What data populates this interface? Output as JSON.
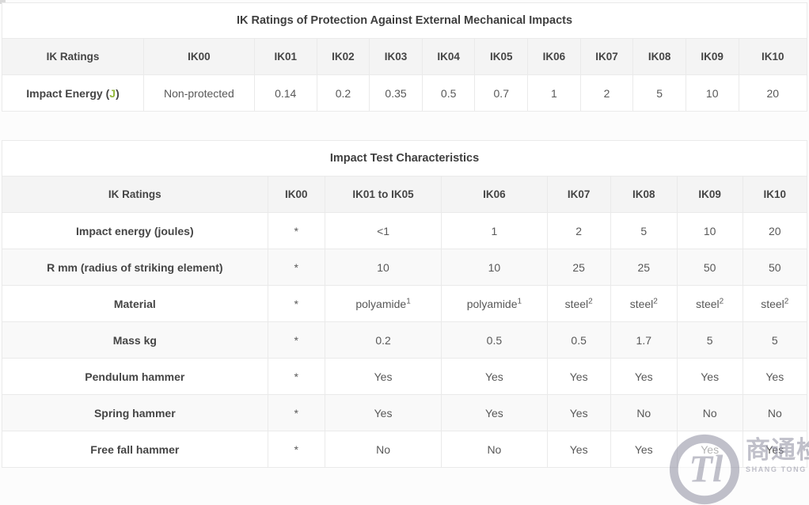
{
  "colors": {
    "green": "#93b83d",
    "header_bg": "#f4f4f4",
    "stripe_bg": "#f9f9f9",
    "border": "#eaeaea",
    "text_dark": "#454545",
    "text_body": "#585858",
    "watermark_gray": "#8e8ea0"
  },
  "table1": {
    "title": "IK Ratings of Protection Against External Mechanical Impacts",
    "col_widths_pct": [
      17.6,
      13.75,
      7.75,
      6.55,
      6.55,
      6.55,
      6.55,
      6.55,
      6.55,
      6.55,
      6.55,
      8.5
    ],
    "header": [
      "IK Ratings",
      "IK00",
      "IK01",
      "IK02",
      "IK03",
      "IK04",
      "IK05",
      "IK06",
      "IK07",
      "IK08",
      "IK09",
      "IK10"
    ],
    "rows": [
      {
        "label": {
          "parts": [
            {
              "text": "Impact Energy ("
            },
            {
              "text": "J",
              "color": "green"
            },
            {
              "text": ")"
            }
          ]
        },
        "cells": [
          "Non-protected",
          "0.14",
          "0.2",
          "0.35",
          "0.5",
          "0.7",
          "1",
          "2",
          "5",
          "10",
          "20"
        ]
      }
    ]
  },
  "table2": {
    "title": "Impact Test Characteristics",
    "col_widths_pct": [
      33.0,
      7.1,
      14.5,
      13.1,
      7.9,
      8.25,
      8.15,
      8.0
    ],
    "header": [
      "IK Ratings",
      "IK00",
      "IK01 to IK05",
      "IK06",
      "IK07",
      "IK08",
      "IK09",
      "IK10"
    ],
    "rows": [
      {
        "label": "Impact energy (joules)",
        "cells": [
          "*",
          "<1",
          "1",
          "2",
          "5",
          "10",
          "20"
        ]
      },
      {
        "label": "R mm (radius of striking element)",
        "cells": [
          "*",
          "10",
          "10",
          "25",
          "25",
          "50",
          "50"
        ]
      },
      {
        "label": "Material",
        "cells": [
          "*",
          {
            "text": "polyamide",
            "sup": "1"
          },
          {
            "text": "polyamide",
            "sup": "1"
          },
          {
            "text": "steel",
            "sup": "2"
          },
          {
            "text": "steel",
            "sup": "2"
          },
          {
            "text": "steel",
            "sup": "2"
          },
          {
            "text": "steel",
            "sup": "2"
          }
        ]
      },
      {
        "label": "Mass kg",
        "cells": [
          "*",
          "0.2",
          "0.5",
          "0.5",
          "1.7",
          "5",
          "5"
        ]
      },
      {
        "label": "Pendulum hammer",
        "cells": [
          "*",
          "Yes",
          "Yes",
          "Yes",
          "Yes",
          "Yes",
          "Yes"
        ]
      },
      {
        "label": "Spring hammer",
        "cells": [
          "*",
          "Yes",
          "Yes",
          "Yes",
          "No",
          "No",
          "No"
        ]
      },
      {
        "label": "Free fall hammer",
        "cells": [
          "*",
          "No",
          "No",
          "Yes",
          "Yes",
          "Yes",
          "Yes"
        ]
      }
    ]
  },
  "watermark": {
    "monogram": "Tl",
    "cn": "商通检测",
    "en": "SHANG TONG TESTING"
  }
}
